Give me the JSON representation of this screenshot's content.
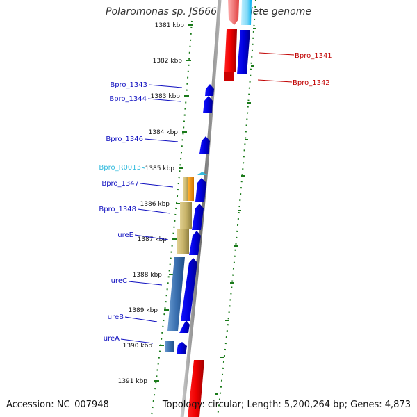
{
  "title": "Polaromonas sp. JS666, complete genome",
  "accession": "Accession: NC_007948",
  "topology": "Topology: circular; Length: 5,200,264 bp; Genes: 4,873",
  "colors": {
    "forward_cds": "#0000ee",
    "reverse_cds": "#ee0000",
    "backbone": "#808080",
    "tick": "#1a7a1a",
    "gene_label_fwd": "#1010c0",
    "gene_label_rev": "#c00000",
    "rna_label": "#33bbdd"
  },
  "ticks": [
    {
      "kbp": 1381,
      "label": "1381 kbp"
    },
    {
      "kbp": 1382,
      "label": "1382 kbp"
    },
    {
      "kbp": 1383,
      "label": "1383 kbp"
    },
    {
      "kbp": 1384,
      "label": "1384 kbp"
    },
    {
      "kbp": 1385,
      "label": "1385 kbp"
    },
    {
      "kbp": 1386,
      "label": "1386 kbp"
    },
    {
      "kbp": 1387,
      "label": "1387 kbp"
    },
    {
      "kbp": 1388,
      "label": "1388 kbp"
    },
    {
      "kbp": 1389,
      "label": "1389 kbp"
    },
    {
      "kbp": 1390,
      "label": "1390 kbp"
    },
    {
      "kbp": 1391,
      "label": "1391 kbp"
    }
  ],
  "gene_labels": [
    {
      "name": "Bpro_1341",
      "strand": "reverse"
    },
    {
      "name": "Bpro_1342",
      "strand": "reverse"
    },
    {
      "name": "Bpro_1343",
      "strand": "forward"
    },
    {
      "name": "Bpro_1344",
      "strand": "forward"
    },
    {
      "name": "Bpro_1346",
      "strand": "forward"
    },
    {
      "name": "Bpro_R0013",
      "strand": "rna"
    },
    {
      "name": "Bpro_1347",
      "strand": "forward"
    },
    {
      "name": "Bpro_1348",
      "strand": "forward"
    },
    {
      "name": "ureE",
      "strand": "forward"
    },
    {
      "name": "ureC",
      "strand": "forward"
    },
    {
      "name": "ureB",
      "strand": "forward"
    },
    {
      "name": "ureA",
      "strand": "forward"
    }
  ]
}
